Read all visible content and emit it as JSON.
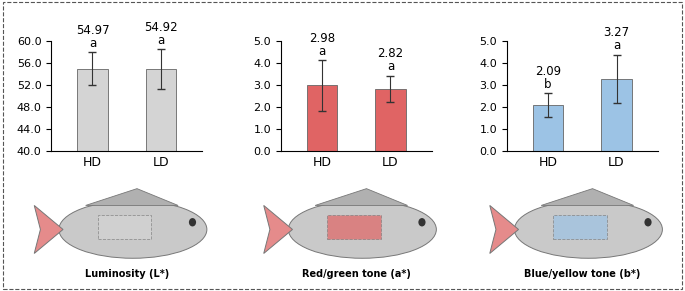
{
  "chart_data": [
    {
      "type": "bar",
      "categories": [
        "HD",
        "LD"
      ],
      "values": [
        54.97,
        54.92
      ],
      "errors": [
        3.0,
        3.6
      ],
      "letters": [
        "a",
        "a"
      ],
      "color": "#d4d4d4",
      "data_labels": true,
      "ylim": [
        40,
        60
      ],
      "yticks": [
        {
          "value": 40,
          "label": "40.0"
        },
        {
          "value": 44,
          "label": "44.0"
        },
        {
          "value": 48,
          "label": "48.0"
        },
        {
          "value": 52,
          "label": "52.0"
        },
        {
          "value": 56,
          "label": "56.0"
        },
        {
          "value": 60,
          "label": "60.0"
        }
      ],
      "annotation": "Luminosity (L*)"
    },
    {
      "type": "bar",
      "categories": [
        "HD",
        "LD"
      ],
      "values": [
        2.98,
        2.82
      ],
      "errors": [
        1.15,
        0.6
      ],
      "letters": [
        "a",
        "a"
      ],
      "color": "#e06464",
      "data_labels": true,
      "ylim": [
        0,
        5
      ],
      "yticks": [
        {
          "value": 0,
          "label": "0.0"
        },
        {
          "value": 1,
          "label": "1.0"
        },
        {
          "value": 2,
          "label": "2.0"
        },
        {
          "value": 3,
          "label": "3.0"
        },
        {
          "value": 4,
          "label": "4.0"
        },
        {
          "value": 5,
          "label": "5.0"
        }
      ],
      "annotation": "Red/green tone (a*)"
    },
    {
      "type": "bar",
      "categories": [
        "HD",
        "LD"
      ],
      "values": [
        2.09,
        3.27
      ],
      "errors": [
        0.55,
        1.1
      ],
      "letters": [
        "b",
        "a"
      ],
      "color": "#9cc3e5",
      "data_labels": true,
      "ylim": [
        0,
        5
      ],
      "yticks": [
        {
          "value": 0,
          "label": "0.0"
        },
        {
          "value": 1,
          "label": "1.0"
        },
        {
          "value": 2,
          "label": "2.0"
        },
        {
          "value": 3,
          "label": "3.0"
        },
        {
          "value": 4,
          "label": "4.0"
        },
        {
          "value": 5,
          "label": "5.0"
        }
      ],
      "annotation": "Blue/yellow tone (b*)"
    }
  ]
}
